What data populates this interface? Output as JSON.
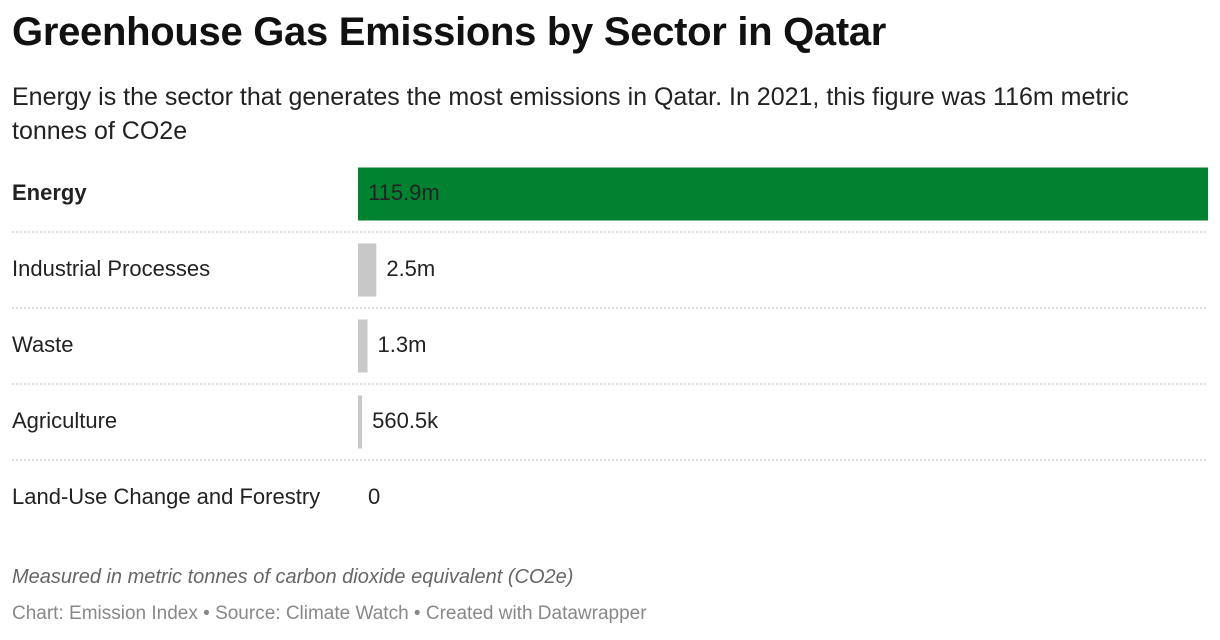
{
  "chart_data": {
    "type": "bar",
    "orientation": "horizontal",
    "title": "Greenhouse Gas Emissions by Sector in Qatar",
    "subtitle": "Energy is the sector that generates the most emissions in Qatar. In 2021, this figure was 116m metric tonnes of CO2e",
    "categories": [
      "Energy",
      "Industrial Processes",
      "Waste",
      "Agriculture",
      "Land-Use Change and Forestry"
    ],
    "values": [
      115900000,
      2500000,
      1300000,
      560500,
      0
    ],
    "value_labels": [
      "115.9m",
      "2.5m",
      "1.3m",
      "560.5k",
      "0"
    ],
    "colors": [
      "#008330",
      "#c8c8c8",
      "#c8c8c8",
      "#c8c8c8",
      "#c8c8c8"
    ],
    "note": "Measured in metric tonnes of carbon dioxide equivalent (CO2e)",
    "footer": "Chart: Emission Index • Source: Climate Watch • Created with Datawrapper"
  }
}
